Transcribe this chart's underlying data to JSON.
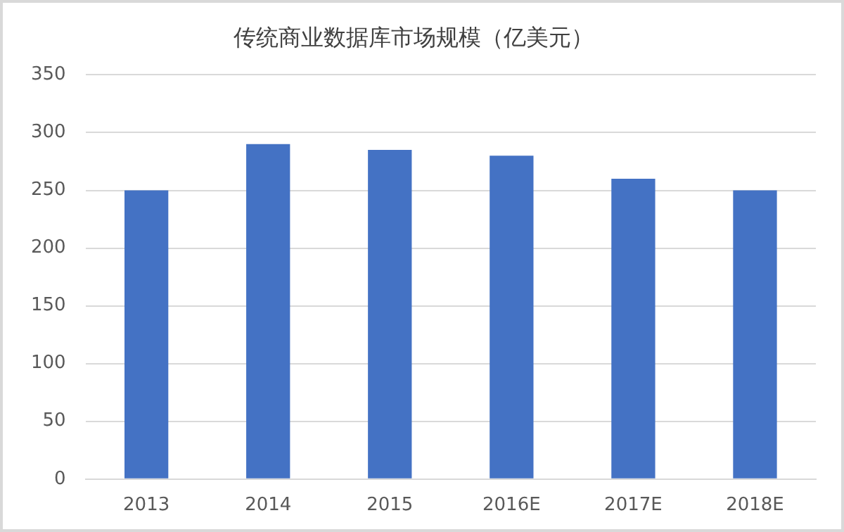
{
  "chart_data": {
    "type": "bar",
    "title": "传统商业数据库市场规模（亿美元）",
    "categories": [
      "2013",
      "2014",
      "2015",
      "2016E",
      "2017E",
      "2018E"
    ],
    "values": [
      250,
      290,
      285,
      280,
      260,
      250
    ],
    "color": "#4472c4",
    "ylim": [
      0,
      350
    ],
    "yticks": [
      0,
      50,
      100,
      150,
      200,
      250,
      300,
      350
    ],
    "grid": "y",
    "legend": false
  }
}
